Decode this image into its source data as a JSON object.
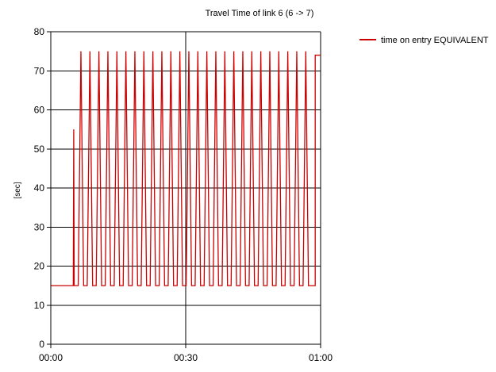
{
  "chart_data": {
    "type": "line",
    "title": "Travel Time of link 6 (6 -> 7)",
    "xlabel": "",
    "ylabel": "[sec]",
    "xlim": [
      0,
      60
    ],
    "ylim": [
      0,
      80
    ],
    "x_ticks": [
      {
        "value": 0,
        "label": "00:00"
      },
      {
        "value": 30,
        "label": "00:30"
      },
      {
        "value": 60,
        "label": "01:00"
      }
    ],
    "y_ticks": [
      0,
      10,
      20,
      30,
      40,
      50,
      60,
      70,
      80
    ],
    "grid": true,
    "legend_position": "top-right",
    "series": [
      {
        "name": "time on entry EQUIVALENT",
        "color": "#cc0000",
        "points": [
          [
            0.0,
            15
          ],
          [
            5.0,
            15
          ],
          [
            5.1,
            55
          ],
          [
            5.2,
            15
          ],
          [
            6.1,
            15
          ],
          [
            6.7,
            75
          ],
          [
            7.3,
            15
          ],
          [
            8.1,
            15
          ],
          [
            8.7,
            75
          ],
          [
            9.3,
            15
          ],
          [
            10.1,
            15
          ],
          [
            10.7,
            75
          ],
          [
            11.3,
            15
          ],
          [
            12.1,
            15
          ],
          [
            12.7,
            75
          ],
          [
            13.3,
            15
          ],
          [
            14.1,
            15
          ],
          [
            14.7,
            75
          ],
          [
            15.3,
            15
          ],
          [
            16.1,
            15
          ],
          [
            16.7,
            75
          ],
          [
            17.3,
            15
          ],
          [
            18.1,
            15
          ],
          [
            18.7,
            75
          ],
          [
            19.3,
            15
          ],
          [
            20.1,
            15
          ],
          [
            20.7,
            75
          ],
          [
            21.3,
            15
          ],
          [
            22.1,
            15
          ],
          [
            22.7,
            75
          ],
          [
            23.3,
            15
          ],
          [
            24.1,
            15
          ],
          [
            24.7,
            75
          ],
          [
            25.3,
            15
          ],
          [
            26.1,
            15
          ],
          [
            26.7,
            75
          ],
          [
            27.3,
            15
          ],
          [
            28.1,
            15
          ],
          [
            28.7,
            75
          ],
          [
            29.3,
            15
          ],
          [
            30.1,
            15
          ],
          [
            30.7,
            75
          ],
          [
            31.3,
            15
          ],
          [
            32.1,
            15
          ],
          [
            32.7,
            75
          ],
          [
            33.3,
            15
          ],
          [
            34.1,
            15
          ],
          [
            34.7,
            75
          ],
          [
            35.3,
            15
          ],
          [
            36.1,
            15
          ],
          [
            36.7,
            75
          ],
          [
            37.3,
            15
          ],
          [
            38.1,
            15
          ],
          [
            38.7,
            75
          ],
          [
            39.3,
            15
          ],
          [
            40.1,
            15
          ],
          [
            40.7,
            75
          ],
          [
            41.3,
            15
          ],
          [
            42.1,
            15
          ],
          [
            42.7,
            75
          ],
          [
            43.3,
            15
          ],
          [
            44.1,
            15
          ],
          [
            44.7,
            75
          ],
          [
            45.3,
            15
          ],
          [
            46.1,
            15
          ],
          [
            46.7,
            75
          ],
          [
            47.3,
            15
          ],
          [
            48.1,
            15
          ],
          [
            48.7,
            75
          ],
          [
            49.3,
            15
          ],
          [
            50.1,
            15
          ],
          [
            50.7,
            75
          ],
          [
            51.3,
            15
          ],
          [
            52.1,
            15
          ],
          [
            52.7,
            75
          ],
          [
            53.3,
            15
          ],
          [
            54.1,
            15
          ],
          [
            54.7,
            75
          ],
          [
            55.3,
            15
          ],
          [
            56.1,
            15
          ],
          [
            56.7,
            75
          ],
          [
            57.3,
            15
          ],
          [
            58.1,
            15
          ],
          [
            58.8,
            15
          ],
          [
            58.8,
            74
          ],
          [
            60.0,
            74
          ]
        ]
      }
    ]
  }
}
